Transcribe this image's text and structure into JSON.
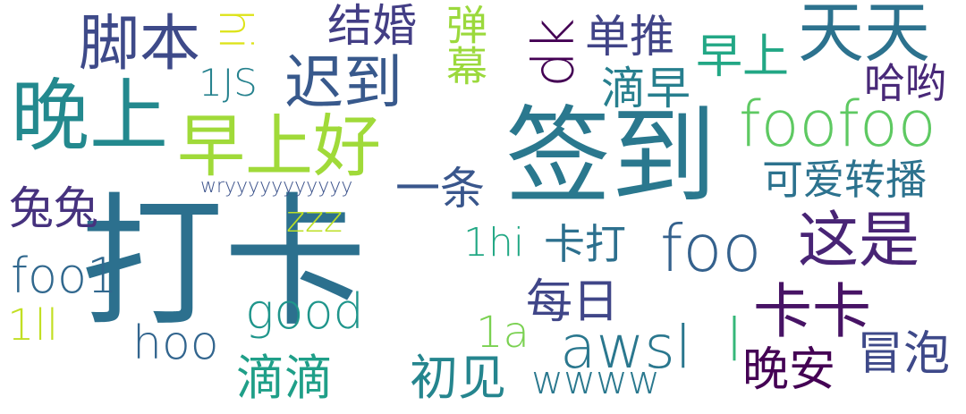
{
  "words": [
    {
      "text": "打卡",
      "color": "#2c708e"
    },
    {
      "text": "签到",
      "color": "#2a788e"
    },
    {
      "text": "晚上",
      "color": "#23898e"
    },
    {
      "text": "早上好",
      "color": "#a0da39"
    },
    {
      "text": "天天",
      "color": "#2c728e"
    },
    {
      "text": "foofoo",
      "color": "#5ec962"
    },
    {
      "text": "脚本",
      "color": "#3e4a89"
    },
    {
      "text": "迟到",
      "color": "#38598c"
    },
    {
      "text": "卡卡",
      "color": "#471365"
    },
    {
      "text": "这是",
      "color": "#482475"
    },
    {
      "text": "foo",
      "color": "#34618d"
    },
    {
      "text": "awsl",
      "color": "#2a778e"
    },
    {
      "text": "dk",
      "color": "#440154"
    },
    {
      "text": "hi",
      "color": "#dde318"
    },
    {
      "text": "弹幕",
      "color": "#9bd93c"
    },
    {
      "text": "结婚",
      "color": "#433e85"
    },
    {
      "text": "单推",
      "color": "#414487"
    },
    {
      "text": "早上",
      "color": "#22a785"
    },
    {
      "text": "1JS",
      "color": "#26828e"
    },
    {
      "text": "滴早",
      "color": "#277f8e"
    },
    {
      "text": "哈哟",
      "color": "#482878"
    },
    {
      "text": "可爱转播",
      "color": "#2c728e"
    },
    {
      "text": "一条",
      "color": "#39568c"
    },
    {
      "text": "wryyyyyyyyyyy",
      "color": "#3b528b"
    },
    {
      "text": "兔兔",
      "color": "#46327e"
    },
    {
      "text": "zzz",
      "color": "#bddf26"
    },
    {
      "text": "1hi",
      "color": "#22a884"
    },
    {
      "text": "卡打",
      "color": "#2d708e"
    },
    {
      "text": "foo1",
      "color": "#31688e"
    },
    {
      "text": "good",
      "color": "#1f958b"
    },
    {
      "text": "每日",
      "color": "#404688"
    },
    {
      "text": "1ll",
      "color": "#c2df23"
    },
    {
      "text": "hoo",
      "color": "#32658e"
    },
    {
      "text": "1a",
      "color": "#7ad151"
    },
    {
      "text": "l",
      "color": "#35b779"
    },
    {
      "text": "滴滴",
      "color": "#1f9f88"
    },
    {
      "text": "初见",
      "color": "#25858e"
    },
    {
      "text": "wwww",
      "color": "#2a788e"
    },
    {
      "text": "晚安",
      "color": "#440154"
    },
    {
      "text": "冒泡",
      "color": "#3e4989"
    }
  ]
}
